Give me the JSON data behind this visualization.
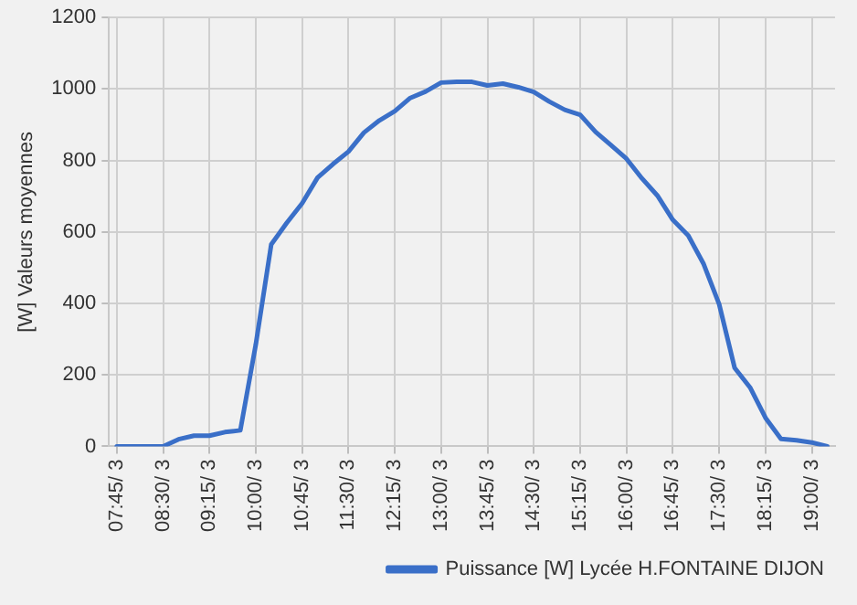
{
  "chart_data": {
    "type": "line",
    "ylabel": "[W] Valeurs moyennes",
    "categories": [
      "07:45/ 3",
      null,
      null,
      "08:30/ 3",
      null,
      null,
      "09:15/ 3",
      null,
      null,
      "10:00/ 3",
      null,
      null,
      "10:45/ 3",
      null,
      null,
      "11:30/ 3",
      null,
      null,
      "12:15/ 3",
      null,
      null,
      "13:00/ 3",
      null,
      null,
      "13:45/ 3",
      null,
      null,
      "14:30/ 3",
      null,
      null,
      "15:15/ 3",
      null,
      null,
      "16:00/ 3",
      null,
      null,
      "16:45/ 3",
      null,
      null,
      "17:30/ 3",
      null,
      null,
      "18:15/ 3",
      null,
      null,
      "19:00/ 3",
      null
    ],
    "ylim": [
      0,
      1200
    ],
    "yticks": [
      0,
      200,
      400,
      600,
      800,
      1000,
      1200
    ],
    "grid": true,
    "legend": "bottom right",
    "marker": "none",
    "line_style": "solid",
    "series": [
      {
        "name": "Puissance [W] Lycée H.FONTAINE DIJON",
        "color": "#3a6fc8",
        "values": [
          0,
          0,
          0,
          0,
          20,
          30,
          30,
          40,
          45,
          285,
          565,
          625,
          680,
          752,
          790,
          825,
          878,
          912,
          938,
          975,
          993,
          1018,
          1020,
          1020,
          1010,
          1015,
          1005,
          992,
          965,
          942,
          928,
          880,
          843,
          805,
          750,
          702,
          634,
          590,
          510,
          398,
          220,
          165,
          80,
          21,
          17,
          11,
          0
        ]
      }
    ]
  }
}
